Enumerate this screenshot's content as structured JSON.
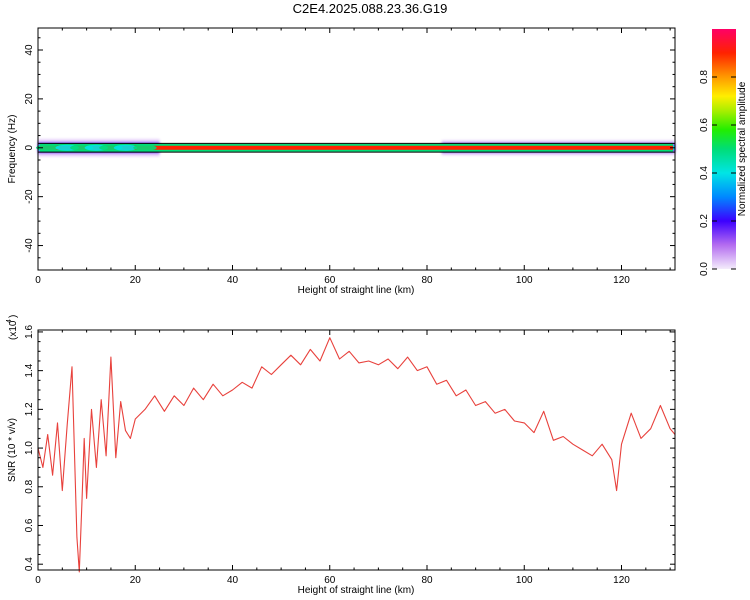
{
  "title": "C2E4.2025.088.23.36.G19",
  "chart_data": [
    {
      "type": "heatmap",
      "xlabel": "Height of straight line (km)",
      "ylabel": "Frequency (Hz)",
      "xlim": [
        0,
        131
      ],
      "ylim": [
        -50,
        49
      ],
      "x_ticks": [
        0,
        20,
        40,
        60,
        80,
        100,
        120
      ],
      "y_ticks": [
        40,
        20,
        0,
        -20,
        -40
      ],
      "colorbar": {
        "label": "Normalized spectral amplitude",
        "range": [
          0.0,
          1.0
        ],
        "ticks": [
          0.0,
          0.2,
          0.4,
          0.6,
          0.8
        ],
        "colors": [
          "#f4ecfb",
          "#b46cf0",
          "#3c00ff",
          "#0088ff",
          "#00e5e5",
          "#00dd77",
          "#22ee00",
          "#aaee00",
          "#ffee00",
          "#ff9900",
          "#ff2200",
          "#ff0066"
        ]
      },
      "features": [
        {
          "x_range": [
            0,
            25
          ],
          "freq_halfwidth": 3.5,
          "peak_amplitude": 1.0,
          "note": "strong red core with speckled green/cyan"
        },
        {
          "x_range": [
            25,
            83
          ],
          "freq_halfwidth": 1.0,
          "peak_amplitude": 0.95,
          "note": "narrow red core"
        },
        {
          "x_range": [
            83,
            131
          ],
          "freq_halfwidth": 3.0,
          "peak_amplitude": 1.0,
          "note": "red core with purple fringes"
        }
      ],
      "outline_band_hz": [
        -1.8,
        1.8
      ]
    },
    {
      "type": "line",
      "xlabel": "Height of straight line (km)",
      "ylabel": "SNR (10 * v/v)",
      "y_scale_label": "(x10",
      "y_scale_exponent": "4",
      "xlim": [
        0,
        131
      ],
      "ylim": [
        0.37,
        1.61
      ],
      "x_ticks": [
        0,
        20,
        40,
        60,
        80,
        100,
        120
      ],
      "y_ticks": [
        0.4,
        0.6,
        0.8,
        1.0,
        1.2,
        1.4,
        1.6
      ],
      "series": [
        {
          "color": "#e8413c",
          "x": [
            0,
            1,
            2,
            3,
            4,
            5,
            6,
            7,
            8,
            8.5,
            9,
            9.5,
            10,
            11,
            12,
            13,
            14,
            15,
            16,
            17,
            18,
            19,
            20,
            22,
            24,
            26,
            28,
            30,
            32,
            34,
            36,
            38,
            40,
            42,
            44,
            46,
            48,
            50,
            52,
            54,
            56,
            58,
            60,
            62,
            64,
            66,
            68,
            70,
            72,
            74,
            76,
            78,
            80,
            82,
            84,
            86,
            88,
            90,
            92,
            94,
            96,
            98,
            100,
            102,
            104,
            106,
            108,
            110,
            112,
            114,
            116,
            118,
            119,
            120,
            122,
            124,
            126,
            128,
            130,
            131
          ],
          "y": [
            1.0,
            0.9,
            1.07,
            0.86,
            1.13,
            0.78,
            1.12,
            1.42,
            0.54,
            0.36,
            0.7,
            1.05,
            0.74,
            1.2,
            0.9,
            1.25,
            0.96,
            1.47,
            0.95,
            1.24,
            1.09,
            1.05,
            1.15,
            1.2,
            1.27,
            1.19,
            1.27,
            1.22,
            1.31,
            1.25,
            1.33,
            1.27,
            1.3,
            1.34,
            1.31,
            1.42,
            1.38,
            1.43,
            1.48,
            1.43,
            1.51,
            1.45,
            1.57,
            1.46,
            1.5,
            1.44,
            1.45,
            1.43,
            1.46,
            1.41,
            1.47,
            1.4,
            1.42,
            1.33,
            1.35,
            1.27,
            1.3,
            1.22,
            1.24,
            1.18,
            1.2,
            1.14,
            1.13,
            1.08,
            1.19,
            1.04,
            1.06,
            1.02,
            0.99,
            0.96,
            1.02,
            0.94,
            0.78,
            1.02,
            1.18,
            1.05,
            1.1,
            1.22,
            1.1,
            1.07
          ]
        }
      ]
    }
  ]
}
